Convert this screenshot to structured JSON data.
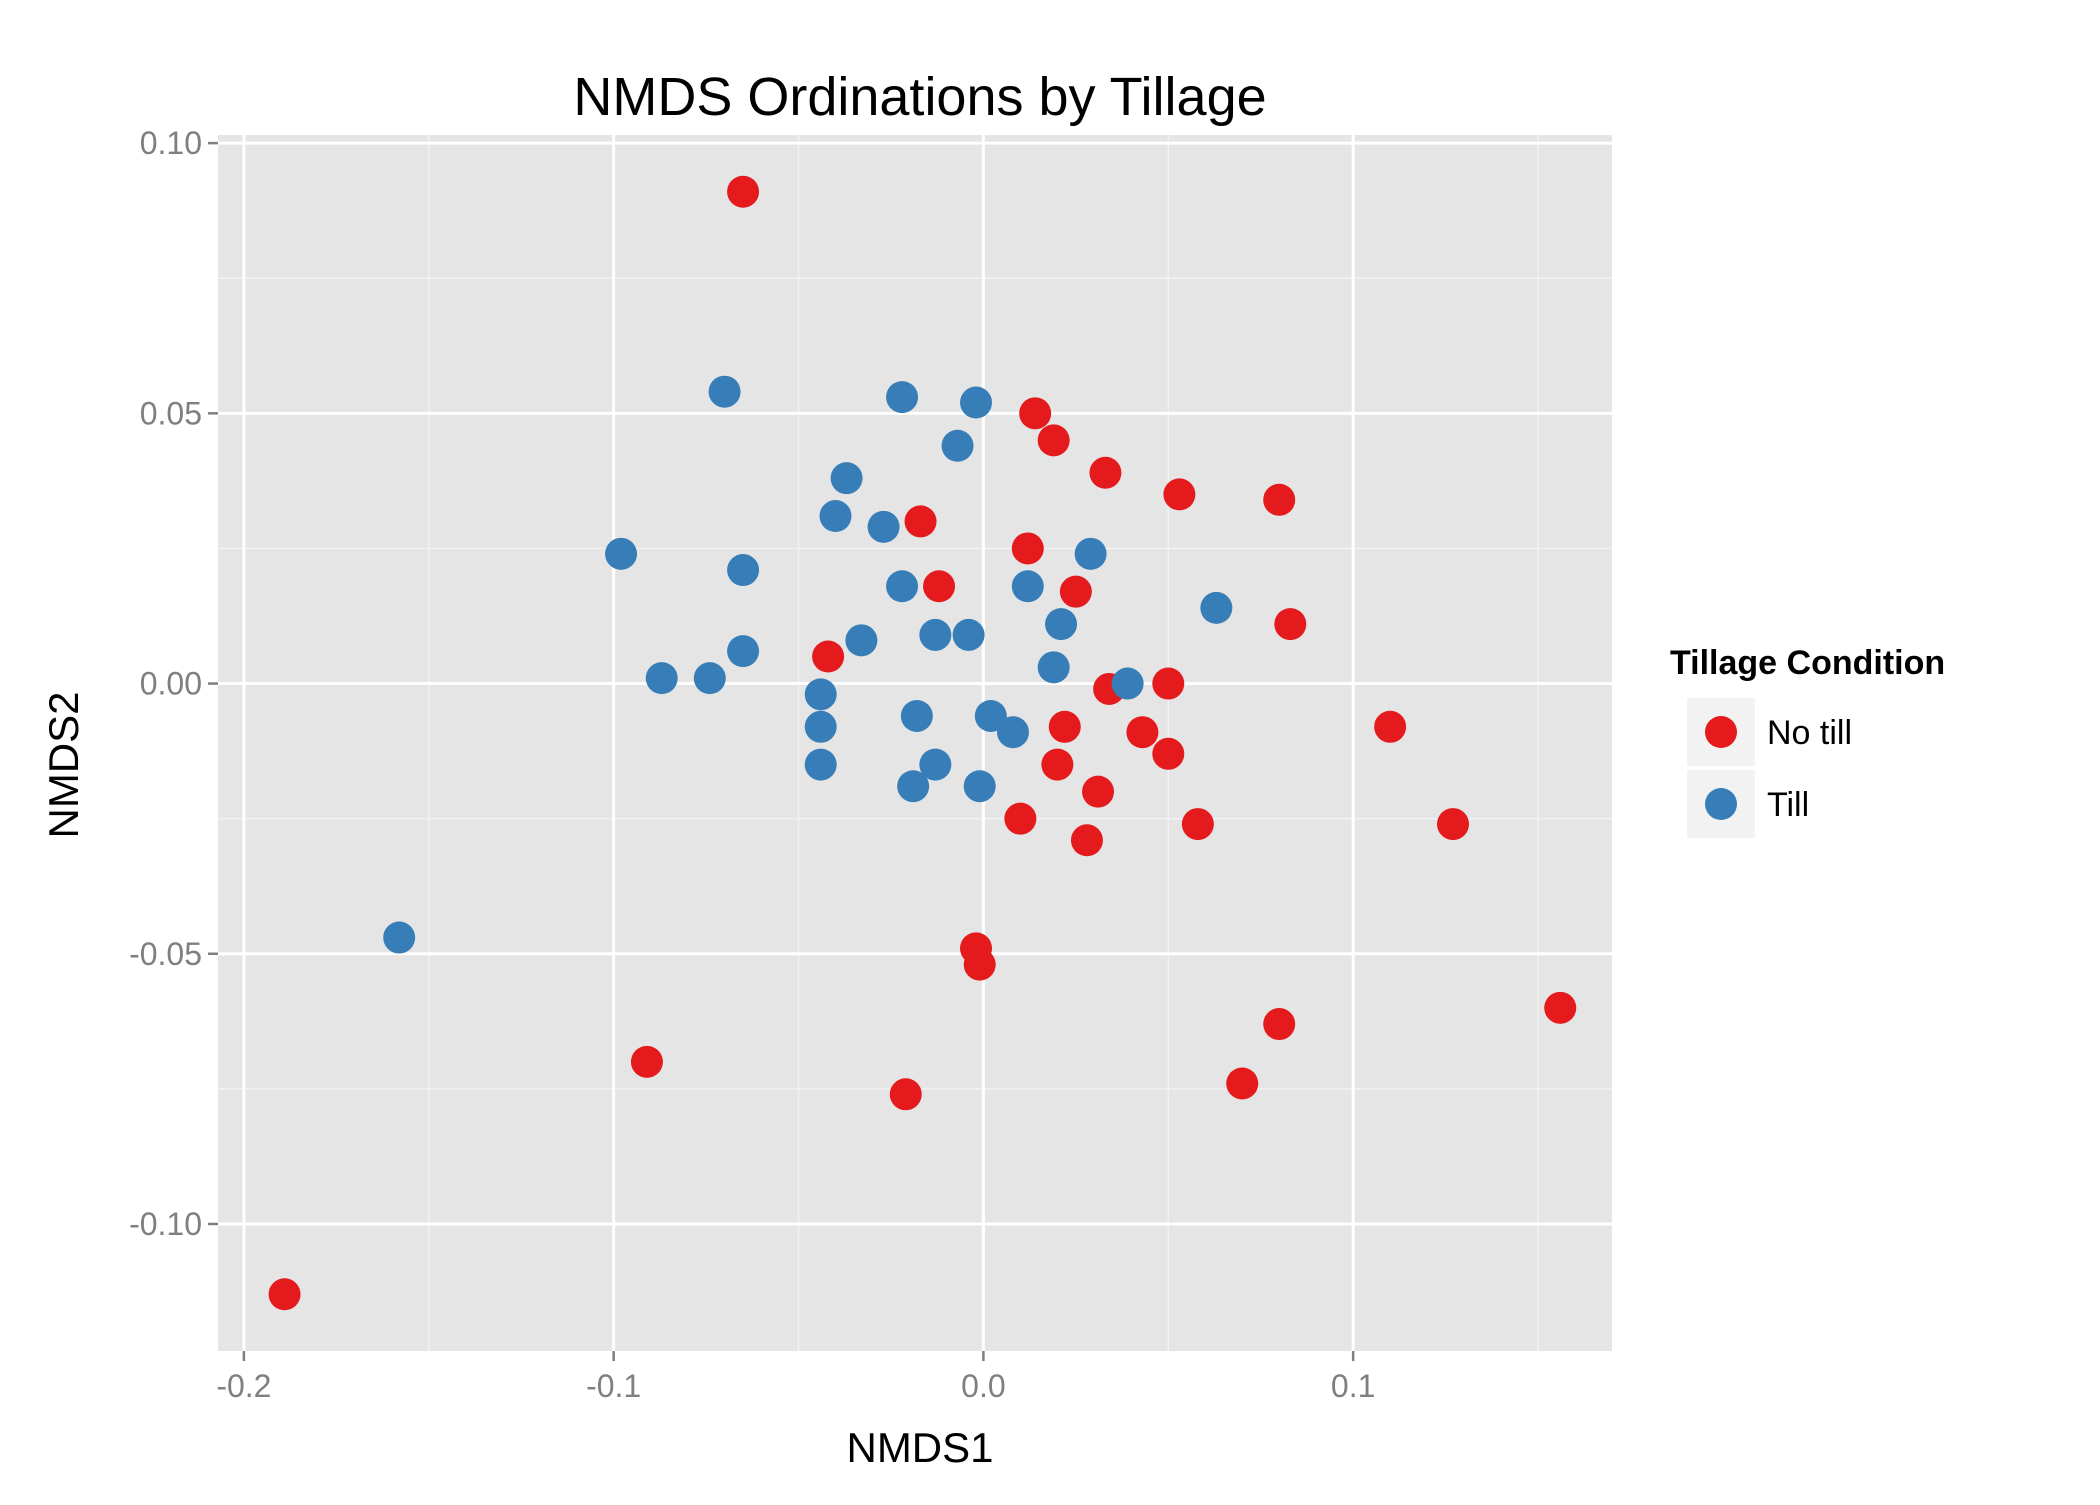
{
  "chart_data": {
    "type": "scatter",
    "title": "NMDS Ordinations by Tillage",
    "xlabel": "NMDS1",
    "ylabel": "NMDS2",
    "xlim": [
      -0.207,
      0.17
    ],
    "ylim": [
      -0.1235,
      0.1015
    ],
    "x_ticks": [
      -0.2,
      -0.1,
      0.0,
      0.1
    ],
    "x_tick_labels": [
      "-0.2",
      "-0.1",
      "0.0",
      "0.1"
    ],
    "y_ticks": [
      0.1,
      0.05,
      0.0,
      -0.05,
      -0.1
    ],
    "y_tick_labels": [
      "0.10",
      "0.05",
      "0.00",
      "-0.05",
      "-0.10"
    ],
    "grid": true,
    "background": "#e5e5e5",
    "legend": {
      "title": "Tillage Condition",
      "position": "right",
      "entries": [
        {
          "label": "No till",
          "color": "#e41a1c"
        },
        {
          "label": "Till",
          "color": "#377eb8"
        }
      ]
    },
    "series": [
      {
        "name": "No till",
        "color": "#e41a1c",
        "points": [
          [
            -0.065,
            0.091
          ],
          [
            0.014,
            0.05
          ],
          [
            0.019,
            0.045
          ],
          [
            0.033,
            0.039
          ],
          [
            0.053,
            0.035
          ],
          [
            0.08,
            0.034
          ],
          [
            -0.017,
            0.03
          ],
          [
            0.012,
            0.025
          ],
          [
            -0.012,
            0.018
          ],
          [
            0.025,
            0.017
          ],
          [
            0.083,
            0.011
          ],
          [
            -0.042,
            0.005
          ],
          [
            0.05,
            0.0
          ],
          [
            0.034,
            -0.001
          ],
          [
            0.11,
            -0.008
          ],
          [
            0.022,
            -0.008
          ],
          [
            0.043,
            -0.009
          ],
          [
            0.05,
            -0.013
          ],
          [
            0.02,
            -0.015
          ],
          [
            0.031,
            -0.02
          ],
          [
            0.01,
            -0.025
          ],
          [
            0.058,
            -0.026
          ],
          [
            0.127,
            -0.026
          ],
          [
            0.028,
            -0.029
          ],
          [
            -0.002,
            -0.049
          ],
          [
            -0.001,
            -0.052
          ],
          [
            0.156,
            -0.06
          ],
          [
            0.08,
            -0.063
          ],
          [
            -0.091,
            -0.07
          ],
          [
            0.07,
            -0.074
          ],
          [
            -0.021,
            -0.076
          ],
          [
            -0.189,
            -0.113
          ]
        ]
      },
      {
        "name": "Till",
        "color": "#377eb8",
        "points": [
          [
            -0.07,
            0.054
          ],
          [
            -0.022,
            0.053
          ],
          [
            -0.002,
            0.052
          ],
          [
            -0.007,
            0.044
          ],
          [
            -0.037,
            0.038
          ],
          [
            -0.04,
            0.031
          ],
          [
            -0.027,
            0.029
          ],
          [
            -0.098,
            0.024
          ],
          [
            0.029,
            0.024
          ],
          [
            -0.065,
            0.021
          ],
          [
            -0.022,
            0.018
          ],
          [
            0.012,
            0.018
          ],
          [
            0.063,
            0.014
          ],
          [
            0.021,
            0.011
          ],
          [
            -0.013,
            0.009
          ],
          [
            -0.004,
            0.009
          ],
          [
            -0.033,
            0.008
          ],
          [
            -0.065,
            0.006
          ],
          [
            0.019,
            0.003
          ],
          [
            -0.087,
            0.001
          ],
          [
            -0.074,
            0.001
          ],
          [
            0.039,
            0.0
          ],
          [
            -0.044,
            -0.002
          ],
          [
            -0.018,
            -0.006
          ],
          [
            0.002,
            -0.006
          ],
          [
            -0.044,
            -0.008
          ],
          [
            0.008,
            -0.009
          ],
          [
            -0.044,
            -0.015
          ],
          [
            -0.013,
            -0.015
          ],
          [
            -0.001,
            -0.019
          ],
          [
            -0.019,
            -0.019
          ],
          [
            -0.158,
            -0.047
          ]
        ]
      }
    ]
  }
}
